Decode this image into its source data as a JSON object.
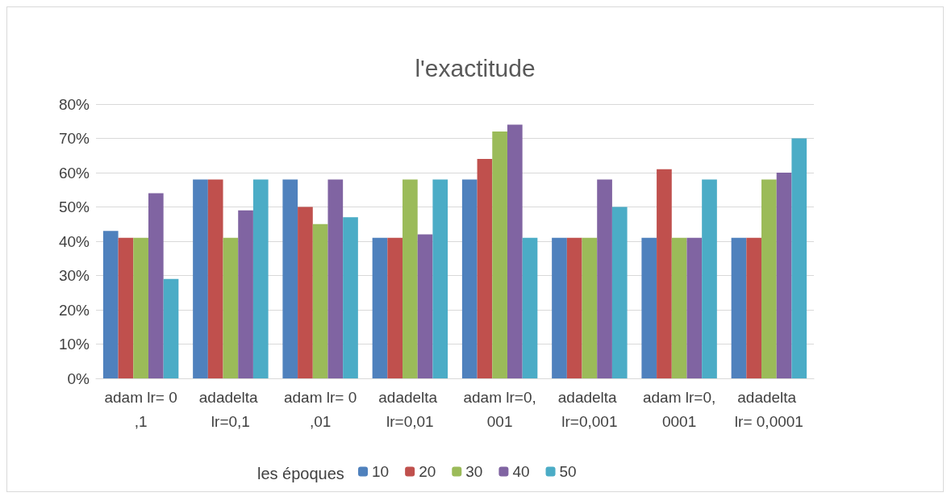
{
  "chart_data": {
    "type": "bar",
    "title": "l'exactitude",
    "categories": [
      "adam lr= 0,1",
      "adadelta lr=0,1",
      "adam lr= 0,01",
      "adadelta lr=0,01",
      "adam lr=0,001",
      "adadelta lr=0,001",
      "adam lr=0,0001",
      "adadelta lr= 0,0001"
    ],
    "series": [
      {
        "name": "10",
        "color": "#4f81bd",
        "values": [
          43,
          58,
          58,
          41,
          58,
          41,
          41,
          41
        ]
      },
      {
        "name": "20",
        "color": "#c0504d",
        "values": [
          41,
          58,
          50,
          41,
          64,
          41,
          61,
          41
        ]
      },
      {
        "name": "30",
        "color": "#9bbb59",
        "values": [
          41,
          41,
          45,
          58,
          72,
          41,
          41,
          58
        ]
      },
      {
        "name": "40",
        "color": "#8064a2",
        "values": [
          54,
          49,
          58,
          42,
          74,
          58,
          41,
          60
        ]
      },
      {
        "name": "50",
        "color": "#4bacc6",
        "values": [
          29,
          58,
          47,
          58,
          41,
          50,
          58,
          70
        ]
      }
    ],
    "ylim": [
      0,
      80
    ],
    "yticks": [
      {
        "value": 0,
        "label": "0%"
      },
      {
        "value": 10,
        "label": "10%"
      },
      {
        "value": 20,
        "label": "20%"
      },
      {
        "value": 30,
        "label": "30%"
      },
      {
        "value": 40,
        "label": "40%"
      },
      {
        "value": 50,
        "label": "50%"
      },
      {
        "value": 60,
        "label": "60%"
      },
      {
        "value": 70,
        "label": "70%"
      },
      {
        "value": 80,
        "label": "80%"
      }
    ],
    "grid": "y",
    "legend": "bottom",
    "legend_title": "les époques"
  }
}
